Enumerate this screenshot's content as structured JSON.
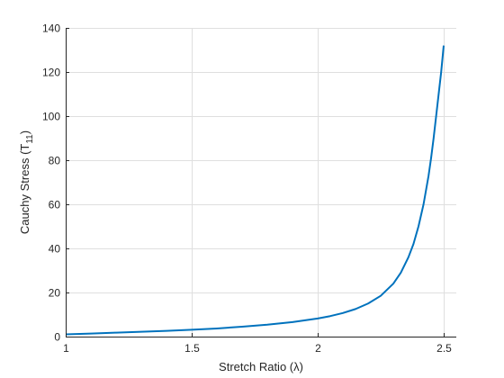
{
  "chart_data": {
    "type": "line",
    "title": "",
    "xlabel": "Stretch Ratio (λ)",
    "ylabel_main": "Cauchy Stress (T",
    "ylabel_sub": "11",
    "ylabel_close": ")",
    "xlim": [
      1,
      2.55
    ],
    "ylim": [
      0,
      140
    ],
    "xticks": [
      1,
      1.5,
      2,
      2.5
    ],
    "xtick_labels": [
      "1",
      "1.5",
      "2",
      "2.5"
    ],
    "yticks": [
      0,
      20,
      40,
      60,
      80,
      100,
      120,
      140
    ],
    "ytick_labels": [
      "0",
      "20",
      "40",
      "60",
      "80",
      "100",
      "120",
      "140"
    ],
    "grid": true,
    "line_color": "#0072bd",
    "series": [
      {
        "x": [
          1.0,
          1.1,
          1.2,
          1.3,
          1.4,
          1.5,
          1.6,
          1.7,
          1.8,
          1.9,
          2.0,
          2.05,
          2.1,
          2.15,
          2.2,
          2.25,
          2.3,
          2.33,
          2.36,
          2.38,
          2.4,
          2.42,
          2.44,
          2.45,
          2.46,
          2.47,
          2.48,
          2.49,
          2.5
        ],
        "y": [
          1.0,
          1.4,
          1.8,
          2.2,
          2.6,
          3.1,
          3.7,
          4.5,
          5.4,
          6.6,
          8.2,
          9.3,
          10.7,
          12.5,
          15.0,
          18.5,
          24.0,
          29.0,
          36.0,
          42.0,
          50.0,
          60.0,
          73.0,
          81.0,
          90.0,
          100.0,
          110.0,
          120.0,
          132.0
        ]
      }
    ]
  }
}
